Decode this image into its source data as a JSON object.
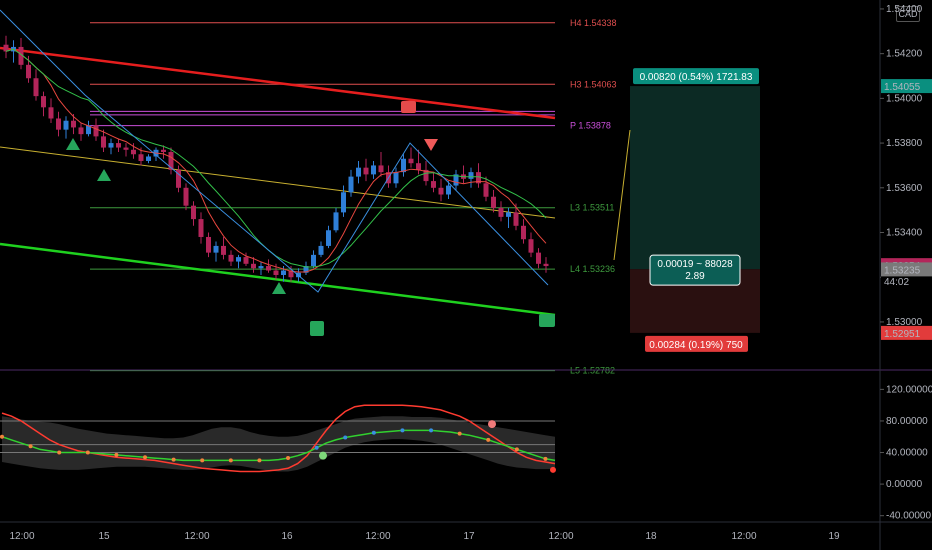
{
  "currency": "CAD",
  "colors": {
    "background": "#000000",
    "up_candle": "#2f7fd8",
    "down_candle": "#b3255a",
    "neutral_candle": "#9a9a9a",
    "pivot_line": "#e04f4f",
    "pivot_p": "#c94fd9",
    "support_line": "#3e9a3e",
    "trend_red": "#e61e1e",
    "trend_green": "#1fd11f",
    "trend_yellow": "#c8b030",
    "zigzag": "#3a8fe0",
    "target_zone": "#0c2a24",
    "stop_zone": "#2a1010"
  },
  "chart_data": [
    {
      "type": "candlestick",
      "title": "",
      "price_axis": {
        "ticks": [
          "1.54400",
          "1.54200",
          "1.54000",
          "1.53800",
          "1.53600",
          "1.53400",
          "1.53200",
          "1.53000"
        ],
        "range": [
          1.52785,
          1.5444
        ]
      },
      "time_axis": {
        "ticks": [
          "12:00",
          "15",
          "12:00",
          "16",
          "12:00",
          "17",
          "12:00",
          "18",
          "12:00",
          "19"
        ]
      },
      "candles_ohlc": [
        [
          1.5424,
          1.5428,
          1.5418,
          1.5421
        ],
        [
          1.5421,
          1.5426,
          1.5416,
          1.5423
        ],
        [
          1.5423,
          1.5427,
          1.5413,
          1.5415
        ],
        [
          1.5415,
          1.5419,
          1.5407,
          1.5409
        ],
        [
          1.5409,
          1.5413,
          1.5399,
          1.5401
        ],
        [
          1.5401,
          1.5403,
          1.5392,
          1.5396
        ],
        [
          1.5396,
          1.54,
          1.5389,
          1.5391
        ],
        [
          1.5391,
          1.5394,
          1.5383,
          1.5386
        ],
        [
          1.5386,
          1.5392,
          1.5382,
          1.539
        ],
        [
          1.539,
          1.5393,
          1.5384,
          1.5387
        ],
        [
          1.5387,
          1.5389,
          1.5381,
          1.5384
        ],
        [
          1.5384,
          1.539,
          1.5383,
          1.5388
        ],
        [
          1.5388,
          1.5391,
          1.5381,
          1.5383
        ],
        [
          1.5383,
          1.5386,
          1.5376,
          1.5378
        ],
        [
          1.5378,
          1.5382,
          1.5375,
          1.538
        ],
        [
          1.538,
          1.5382,
          1.5376,
          1.5378
        ],
        [
          1.5378,
          1.538,
          1.5374,
          1.5377
        ],
        [
          1.5377,
          1.538,
          1.5373,
          1.5375
        ],
        [
          1.5375,
          1.5378,
          1.537,
          1.5372
        ],
        [
          1.5372,
          1.5375,
          1.5371,
          1.5374
        ],
        [
          1.5374,
          1.5378,
          1.5372,
          1.5377
        ],
        [
          1.5377,
          1.5379,
          1.5373,
          1.5376
        ],
        [
          1.5376,
          1.5378,
          1.5366,
          1.5368
        ],
        [
          1.5368,
          1.537,
          1.5358,
          1.536
        ],
        [
          1.536,
          1.5362,
          1.535,
          1.5352
        ],
        [
          1.5352,
          1.5354,
          1.5343,
          1.5346
        ],
        [
          1.5346,
          1.5349,
          1.5335,
          1.5338
        ],
        [
          1.5338,
          1.534,
          1.5329,
          1.5331
        ],
        [
          1.5331,
          1.5336,
          1.5327,
          1.5334
        ],
        [
          1.5334,
          1.5338,
          1.5328,
          1.533
        ],
        [
          1.533,
          1.5332,
          1.5325,
          1.5327
        ],
        [
          1.5327,
          1.533,
          1.5324,
          1.5329
        ],
        [
          1.5329,
          1.5331,
          1.5325,
          1.5326
        ],
        [
          1.5326,
          1.5329,
          1.5322,
          1.5324
        ],
        [
          1.5324,
          1.5327,
          1.5321,
          1.5325
        ],
        [
          1.5325,
          1.5328,
          1.5322,
          1.5323
        ],
        [
          1.5323,
          1.5326,
          1.5319,
          1.5321
        ],
        [
          1.5321,
          1.5325,
          1.5318,
          1.5323
        ],
        [
          1.5323,
          1.5325,
          1.5318,
          1.532
        ],
        [
          1.532,
          1.5324,
          1.5318,
          1.5322
        ],
        [
          1.5322,
          1.5327,
          1.5321,
          1.5325
        ],
        [
          1.5325,
          1.5332,
          1.5324,
          1.533
        ],
        [
          1.533,
          1.5336,
          1.5329,
          1.5334
        ],
        [
          1.5334,
          1.5343,
          1.5333,
          1.5341
        ],
        [
          1.5341,
          1.5351,
          1.534,
          1.5349
        ],
        [
          1.5349,
          1.5361,
          1.5347,
          1.5358
        ],
        [
          1.5358,
          1.5368,
          1.5356,
          1.5365
        ],
        [
          1.5365,
          1.5372,
          1.5362,
          1.5369
        ],
        [
          1.5369,
          1.5373,
          1.5363,
          1.5366
        ],
        [
          1.5366,
          1.5372,
          1.5364,
          1.537
        ],
        [
          1.537,
          1.5376,
          1.5365,
          1.5367
        ],
        [
          1.5367,
          1.537,
          1.536,
          1.5362
        ],
        [
          1.5362,
          1.5369,
          1.536,
          1.5367
        ],
        [
          1.5367,
          1.5375,
          1.5365,
          1.5373
        ],
        [
          1.5373,
          1.5378,
          1.5369,
          1.5371
        ],
        [
          1.5371,
          1.5377,
          1.5366,
          1.5368
        ],
        [
          1.5368,
          1.5372,
          1.5361,
          1.5363
        ],
        [
          1.5363,
          1.5367,
          1.5358,
          1.536
        ],
        [
          1.536,
          1.5364,
          1.5354,
          1.5357
        ],
        [
          1.5357,
          1.5363,
          1.5355,
          1.5361
        ],
        [
          1.5361,
          1.5368,
          1.5359,
          1.5366
        ],
        [
          1.5366,
          1.537,
          1.5362,
          1.5364
        ],
        [
          1.5364,
          1.5369,
          1.536,
          1.5367
        ],
        [
          1.5367,
          1.5371,
          1.536,
          1.5362
        ],
        [
          1.5362,
          1.5365,
          1.5354,
          1.5356
        ],
        [
          1.5356,
          1.5359,
          1.5349,
          1.5351
        ],
        [
          1.5351,
          1.5354,
          1.5345,
          1.5347
        ],
        [
          1.5347,
          1.5351,
          1.5342,
          1.5349
        ],
        [
          1.5349,
          1.5353,
          1.5341,
          1.5343
        ],
        [
          1.5343,
          1.5346,
          1.5335,
          1.5337
        ],
        [
          1.5337,
          1.534,
          1.5329,
          1.5331
        ],
        [
          1.5331,
          1.5333,
          1.5324,
          1.5326
        ],
        [
          1.5326,
          1.5329,
          1.5322,
          1.5325
        ]
      ],
      "pivot_levels": [
        {
          "label": "H4 1.54338",
          "value": 1.54338,
          "kind": "resistance"
        },
        {
          "label": "H3 1.54063",
          "value": 1.54063,
          "kind": "resistance"
        },
        {
          "label": "P 1.53878",
          "value": 1.53878,
          "kind": "pivot"
        },
        {
          "label": "L3 1.53511",
          "value": 1.53511,
          "kind": "support"
        },
        {
          "label": "L4 1.53236",
          "value": 1.53236,
          "kind": "support"
        },
        {
          "label": "L5 1.52782",
          "value": 1.52782,
          "kind": "support"
        }
      ],
      "price_tags": [
        {
          "text": "1.54055",
          "value": 1.54055,
          "color": "#0a8f7f"
        },
        {
          "text": "1.53254",
          "value": 1.53254,
          "color": "#b3255a"
        },
        {
          "text": "44:02",
          "value": 1.53254,
          "color": "#000000",
          "below": true
        },
        {
          "text": "1.53235",
          "value": 1.53235,
          "color": "#7a7a7a"
        },
        {
          "text": "1.52951",
          "value": 1.52951,
          "color": "#e23b3b"
        }
      ],
      "position_tool": {
        "entry": 1.53236,
        "target": 1.54055,
        "stop": 1.52951,
        "target_label": "0.00820 (0.54%) 1721.83",
        "stop_label": "0.00284 (0.19%) 750",
        "center_label_1": "0.00019 ~ 88028",
        "center_label_2": "2.89"
      }
    },
    {
      "type": "oscillator",
      "title": "",
      "y_axis": {
        "ticks": [
          "120.00000",
          "80.00000",
          "40.00000",
          "0.00000",
          "-40.00000"
        ],
        "range": [
          -48,
          142
        ]
      },
      "bollinger_upper": [
        86,
        84,
        82,
        80,
        79,
        78,
        76,
        73,
        70,
        68,
        66,
        64,
        63,
        62,
        61,
        60,
        59,
        58,
        58,
        59,
        62,
        66,
        70,
        72,
        72,
        70,
        66,
        63,
        61,
        60,
        60,
        61,
        64,
        68,
        72,
        76,
        80,
        83,
        84,
        85,
        86,
        86,
        86,
        85,
        85,
        85,
        84,
        82,
        80,
        78,
        76,
        74,
        72,
        70,
        68,
        66,
        64,
        62,
        60
      ],
      "bollinger_lower": [
        28,
        26,
        24,
        22,
        20,
        19,
        18,
        18,
        18,
        19,
        20,
        21,
        22,
        22,
        22,
        22,
        21,
        20,
        19,
        18,
        18,
        19,
        21,
        23,
        24,
        23,
        21,
        19,
        17,
        16,
        16,
        18,
        22,
        28,
        34,
        40,
        46,
        50,
        53,
        55,
        56,
        57,
        57,
        56,
        55,
        53,
        50,
        46,
        42,
        38,
        34,
        30,
        26,
        23,
        21,
        20,
        19,
        19,
        19
      ],
      "stoch_red": [
        90,
        86,
        80,
        72,
        64,
        56,
        50,
        46,
        42,
        40,
        38,
        36,
        34,
        33,
        32,
        31,
        30,
        28,
        26,
        24,
        22,
        20,
        19,
        18,
        17,
        16,
        16,
        16,
        17,
        18,
        20,
        26,
        36,
        52,
        68,
        82,
        92,
        98,
        100,
        100,
        100,
        100,
        100,
        99,
        98,
        96,
        94,
        90,
        86,
        80,
        72,
        64,
        56,
        48,
        40,
        34,
        30,
        28,
        26
      ],
      "green_signal": [
        60,
        56,
        52,
        48,
        44,
        42,
        40,
        40,
        40,
        40,
        39,
        38,
        37,
        36,
        35,
        34,
        33,
        32,
        31,
        30,
        30,
        30,
        30,
        30,
        30,
        30,
        30,
        30,
        30,
        31,
        33,
        36,
        40,
        46,
        52,
        56,
        59,
        61,
        63,
        65,
        66,
        67,
        68,
        68,
        68,
        68,
        67,
        66,
        64,
        62,
        59,
        56,
        52,
        48,
        44,
        40,
        36,
        32,
        30
      ]
    }
  ]
}
